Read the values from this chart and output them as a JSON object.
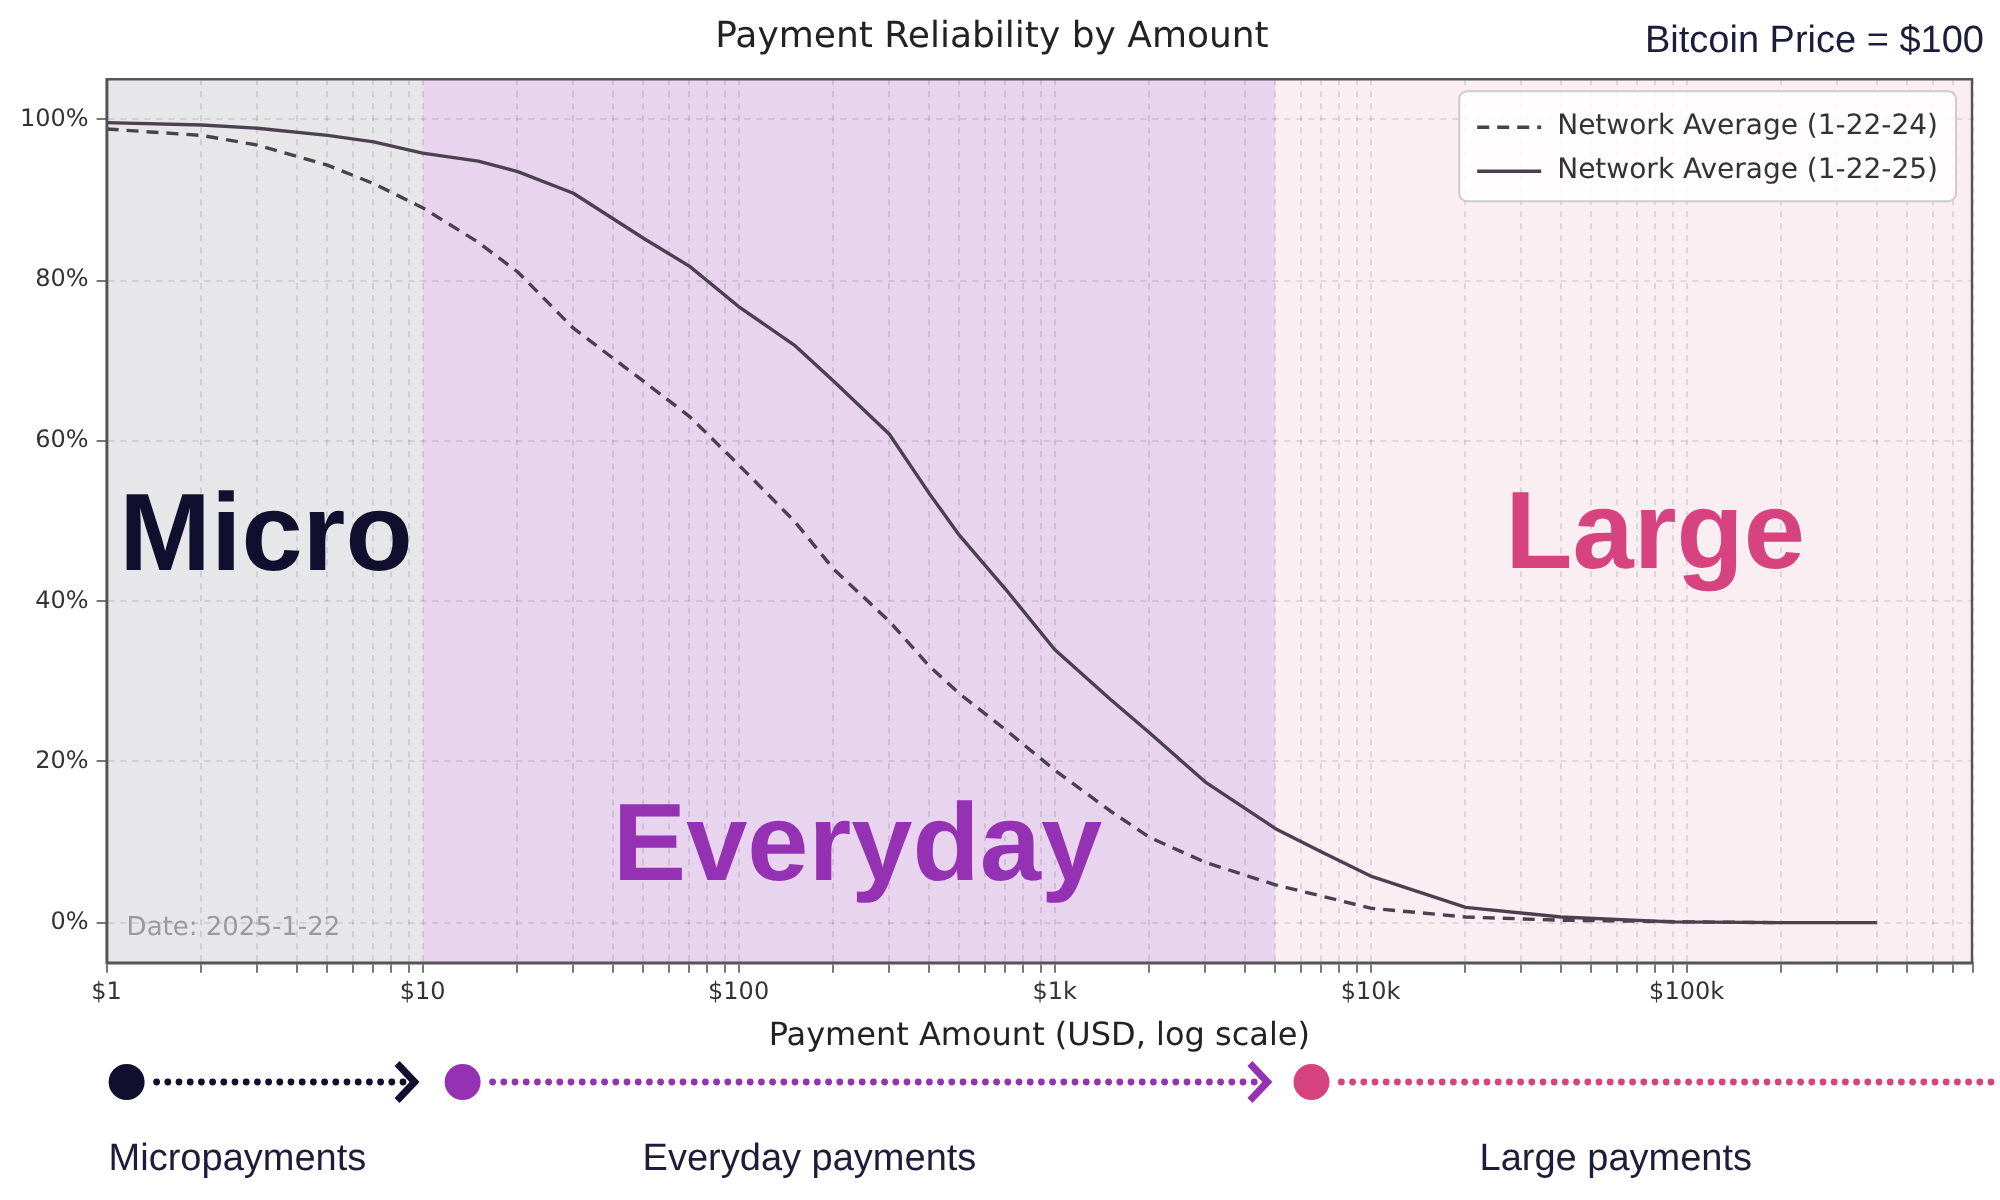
{
  "chart_data": {
    "type": "line",
    "title": "Payment Reliability by Amount",
    "xlabel": "Payment Amount (USD, log scale)",
    "annotations": [
      "Date: 2025-1-22",
      "Bitcoin Price = $100",
      "Micropayments",
      "Everyday payments",
      "Large payments"
    ],
    "series": [
      {
        "name": "Network Average (1-22-24)",
        "color": "#4a4050",
        "line_style": "dashed",
        "x": [
          1,
          2,
          3,
          5,
          7,
          10,
          15,
          20,
          30,
          50,
          70,
          100,
          150,
          200,
          300,
          400,
          500,
          700,
          1000,
          1500,
          2000,
          3000,
          5000,
          7000,
          10000,
          20000,
          40000,
          100000,
          190000
        ],
        "values": [
          98.8,
          98,
          96.8,
          94.3,
          92,
          89,
          84.7,
          81,
          74,
          67.4,
          63,
          57,
          50,
          44,
          37.5,
          32,
          28.5,
          24,
          19,
          13.9,
          10.6,
          7.5,
          4.7,
          3.3,
          1.8,
          0.7,
          0.3,
          0.1,
          0
        ]
      },
      {
        "name": "Network Average (1-22-25)",
        "color": "#4a4050",
        "line_style": "solid",
        "x": [
          1,
          2,
          3,
          5,
          7,
          10,
          15,
          20,
          30,
          50,
          70,
          100,
          150,
          200,
          300,
          400,
          500,
          700,
          1000,
          1500,
          2000,
          3000,
          5000,
          7000,
          10000,
          20000,
          40000,
          90000,
          200000,
          400000
        ],
        "values": [
          99.6,
          99.3,
          98.9,
          98,
          97.2,
          95.8,
          94.8,
          93.5,
          90.8,
          85.2,
          81.7,
          76.7,
          71.9,
          67.4,
          60.8,
          53.5,
          48.2,
          41.5,
          34,
          27.8,
          23.6,
          17.5,
          11.7,
          8.8,
          5.8,
          1.9,
          0.7,
          0.1,
          0,
          0
        ]
      }
    ],
    "xlim": [
      1,
      800000
    ],
    "ylim": [
      -5,
      105
    ],
    "xticks": [
      {
        "value": 1,
        "label": "$1"
      },
      {
        "value": 2,
        "label": null
      },
      {
        "value": 3,
        "label": null
      },
      {
        "value": 4,
        "label": null
      },
      {
        "value": 5,
        "label": null
      },
      {
        "value": 6,
        "label": null
      },
      {
        "value": 7,
        "label": null
      },
      {
        "value": 8,
        "label": null
      },
      {
        "value": 9,
        "label": null
      },
      {
        "value": 10,
        "label": "$10"
      },
      {
        "value": 20,
        "label": null
      },
      {
        "value": 30,
        "label": null
      },
      {
        "value": 40,
        "label": null
      },
      {
        "value": 50,
        "label": null
      },
      {
        "value": 60,
        "label": null
      },
      {
        "value": 70,
        "label": null
      },
      {
        "value": 80,
        "label": null
      },
      {
        "value": 90,
        "label": null
      },
      {
        "value": 100,
        "label": "$100"
      },
      {
        "value": 200,
        "label": null
      },
      {
        "value": 300,
        "label": null
      },
      {
        "value": 400,
        "label": null
      },
      {
        "value": 500,
        "label": null
      },
      {
        "value": 600,
        "label": null
      },
      {
        "value": 700,
        "label": null
      },
      {
        "value": 800,
        "label": null
      },
      {
        "value": 900,
        "label": null
      },
      {
        "value": 1000,
        "label": "$1k"
      },
      {
        "value": 2000,
        "label": null
      },
      {
        "value": 3000,
        "label": null
      },
      {
        "value": 4000,
        "label": null
      },
      {
        "value": 5000,
        "label": null
      },
      {
        "value": 6000,
        "label": null
      },
      {
        "value": 7000,
        "label": null
      },
      {
        "value": 8000,
        "label": null
      },
      {
        "value": 9000,
        "label": null
      },
      {
        "value": 10000,
        "label": "$10k"
      },
      {
        "value": 20000,
        "label": null
      },
      {
        "value": 30000,
        "label": null
      },
      {
        "value": 40000,
        "label": null
      },
      {
        "value": 50000,
        "label": null
      },
      {
        "value": 60000,
        "label": null
      },
      {
        "value": 70000,
        "label": null
      },
      {
        "value": 80000,
        "label": null
      },
      {
        "value": 90000,
        "label": null
      },
      {
        "value": 100000,
        "label": "$100k"
      },
      {
        "value": 200000,
        "label": null
      },
      {
        "value": 300000,
        "label": null
      },
      {
        "value": 400000,
        "label": null
      },
      {
        "value": 500000,
        "label": null
      },
      {
        "value": 600000,
        "label": null
      },
      {
        "value": 700000,
        "label": null
      },
      {
        "value": 800000,
        "label": null
      }
    ],
    "yticks": [
      {
        "value": 0,
        "label": "0%"
      },
      {
        "value": 20,
        "label": "20%"
      },
      {
        "value": 40,
        "label": "40%"
      },
      {
        "value": 60,
        "label": "60%"
      },
      {
        "value": 80,
        "label": "80%"
      },
      {
        "value": 100,
        "label": "100%"
      }
    ],
    "log": "x",
    "grid": true,
    "legend": "top right",
    "marker": "none",
    "bands": [
      {
        "axis": "x",
        "from": 1,
        "to": 10,
        "label": "Micro",
        "color": "#e7e7ea"
      },
      {
        "axis": "x",
        "from": 10,
        "to": 5000,
        "label": "Everyday",
        "color": "#e8d4ee"
      },
      {
        "axis": "x",
        "from": 5000,
        "to": 800000,
        "label": "Large",
        "color": "#fbeef2"
      }
    ]
  }
}
